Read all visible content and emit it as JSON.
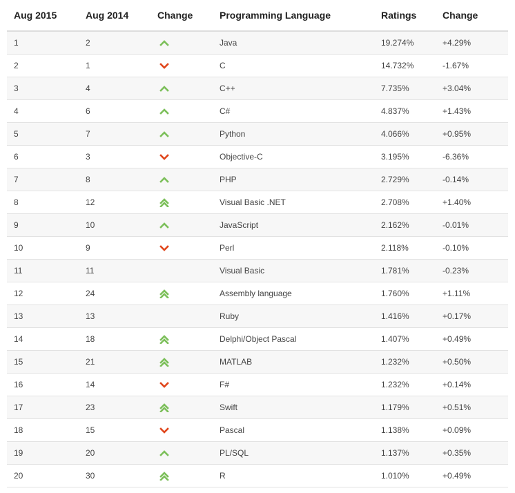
{
  "table": {
    "headers": [
      "Aug 2015",
      "Aug 2014",
      "Change",
      "Programming Language",
      "Ratings",
      "Change"
    ],
    "rows": [
      {
        "rank_2015": "1",
        "rank_2014": "2",
        "trend": "up",
        "language": "Java",
        "rating": "19.274%",
        "change": "+4.29%"
      },
      {
        "rank_2015": "2",
        "rank_2014": "1",
        "trend": "down",
        "language": "C",
        "rating": "14.732%",
        "change": "-1.67%"
      },
      {
        "rank_2015": "3",
        "rank_2014": "4",
        "trend": "up",
        "language": "C++",
        "rating": "7.735%",
        "change": "+3.04%"
      },
      {
        "rank_2015": "4",
        "rank_2014": "6",
        "trend": "up",
        "language": "C#",
        "rating": "4.837%",
        "change": "+1.43%"
      },
      {
        "rank_2015": "5",
        "rank_2014": "7",
        "trend": "up",
        "language": "Python",
        "rating": "4.066%",
        "change": "+0.95%"
      },
      {
        "rank_2015": "6",
        "rank_2014": "3",
        "trend": "down",
        "language": "Objective-C",
        "rating": "3.195%",
        "change": "-6.36%"
      },
      {
        "rank_2015": "7",
        "rank_2014": "8",
        "trend": "up",
        "language": "PHP",
        "rating": "2.729%",
        "change": "-0.14%"
      },
      {
        "rank_2015": "8",
        "rank_2014": "12",
        "trend": "double-up",
        "language": "Visual Basic .NET",
        "rating": "2.708%",
        "change": "+1.40%"
      },
      {
        "rank_2015": "9",
        "rank_2014": "10",
        "trend": "up",
        "language": "JavaScript",
        "rating": "2.162%",
        "change": "-0.01%"
      },
      {
        "rank_2015": "10",
        "rank_2014": "9",
        "trend": "down",
        "language": "Perl",
        "rating": "2.118%",
        "change": "-0.10%"
      },
      {
        "rank_2015": "11",
        "rank_2014": "11",
        "trend": "none",
        "language": "Visual Basic",
        "rating": "1.781%",
        "change": "-0.23%"
      },
      {
        "rank_2015": "12",
        "rank_2014": "24",
        "trend": "double-up",
        "language": "Assembly language",
        "rating": "1.760%",
        "change": "+1.11%"
      },
      {
        "rank_2015": "13",
        "rank_2014": "13",
        "trend": "none",
        "language": "Ruby",
        "rating": "1.416%",
        "change": "+0.17%"
      },
      {
        "rank_2015": "14",
        "rank_2014": "18",
        "trend": "double-up",
        "language": "Delphi/Object Pascal",
        "rating": "1.407%",
        "change": "+0.49%"
      },
      {
        "rank_2015": "15",
        "rank_2014": "21",
        "trend": "double-up",
        "language": "MATLAB",
        "rating": "1.232%",
        "change": "+0.50%"
      },
      {
        "rank_2015": "16",
        "rank_2014": "14",
        "trend": "down",
        "language": "F#",
        "rating": "1.232%",
        "change": "+0.14%"
      },
      {
        "rank_2015": "17",
        "rank_2014": "23",
        "trend": "double-up",
        "language": "Swift",
        "rating": "1.179%",
        "change": "+0.51%"
      },
      {
        "rank_2015": "18",
        "rank_2014": "15",
        "trend": "down",
        "language": "Pascal",
        "rating": "1.138%",
        "change": "+0.09%"
      },
      {
        "rank_2015": "19",
        "rank_2014": "20",
        "trend": "up",
        "language": "PL/SQL",
        "rating": "1.137%",
        "change": "+0.35%"
      },
      {
        "rank_2015": "20",
        "rank_2014": "30",
        "trend": "double-up",
        "language": "R",
        "rating": "1.010%",
        "change": "+0.49%"
      }
    ]
  },
  "icons": {
    "up": "chevron-up-icon",
    "double-up": "double-chevron-up-icon",
    "down": "chevron-down-icon"
  },
  "colors": {
    "up": "#7cbf5a",
    "down": "#e0461c",
    "row_alt": "#f7f7f7",
    "border": "#dddddd"
  }
}
